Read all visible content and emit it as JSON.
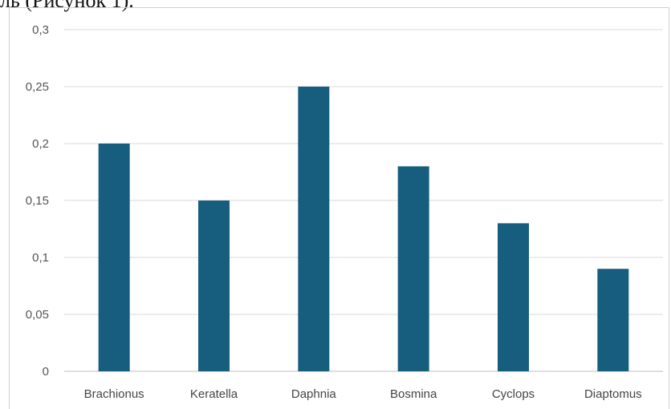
{
  "page_text": {
    "caption_fragment": "ль (Рисунок 1)."
  },
  "colors": {
    "bar": "#175e7e",
    "grid": "#d9d9d9"
  },
  "chart_data": {
    "type": "bar",
    "title": "",
    "xlabel": "",
    "ylabel": "",
    "categories": [
      "Brachionus",
      "Keratella",
      "Daphnia",
      "Bosmina",
      "Cyclops",
      "Diaptomus"
    ],
    "values": [
      0.2,
      0.15,
      0.25,
      0.18,
      0.13,
      0.09
    ],
    "ylim": [
      0,
      0.3
    ],
    "yticks": [
      0,
      0.05,
      0.1,
      0.15,
      0.2,
      0.25,
      0.3
    ],
    "ytick_labels": [
      "0",
      "0,05",
      "0,1",
      "0,15",
      "0,2",
      "0,25",
      "0,3"
    ],
    "grid": true,
    "legend": "none"
  }
}
